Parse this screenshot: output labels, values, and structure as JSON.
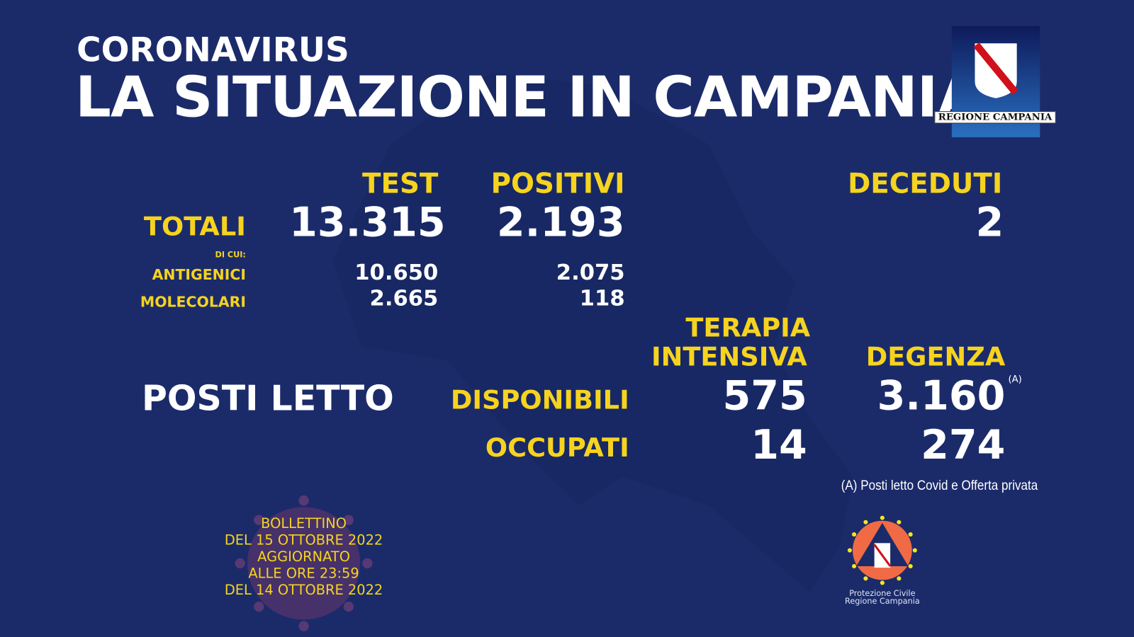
{
  "header": {
    "kicker": "CORONAVIRUS",
    "title": "LA SITUAZIONE IN CAMPANIA"
  },
  "logo_region": {
    "text": "REGIONE CAMPANIA"
  },
  "columns": {
    "test": "TEST",
    "positivi": "POSITIVI",
    "deceduti": "DECEDUTI"
  },
  "rows": {
    "totali": {
      "label": "TOTALI",
      "test": "13.315",
      "positivi": "2.193",
      "deceduti": "2"
    },
    "di_cui": "DI CUI:",
    "antigenici": {
      "label": "ANTIGENICI",
      "test": "10.650",
      "positivi": "2.075"
    },
    "molecolari": {
      "label": "MOLECOLARI",
      "test": "2.665",
      "positivi": "118"
    }
  },
  "beds": {
    "title": "POSTI LETTO",
    "col_ti_1": "TERAPIA",
    "col_ti_2": "INTENSIVA",
    "col_deg": "DEGENZA",
    "disponibili": {
      "label": "DISPONIBILI",
      "ti": "575",
      "deg": "3.160",
      "note_mark": "(A)"
    },
    "occupati": {
      "label": "OCCUPATI",
      "ti": "14",
      "deg": "274"
    },
    "footnote": "(A) Posti letto Covid e Offerta privata"
  },
  "bulletin": {
    "l1": "BOLLETTINO",
    "l2": "DEL 15 OTTOBRE 2022",
    "l3": "AGGIORNATO",
    "l4": "ALLE ORE 23:59",
    "l5": "DEL 14 OTTOBRE 2022"
  },
  "logo_pc": {
    "l1": "Protezione Civile",
    "l2": "Regione Campania"
  },
  "colors": {
    "background": "#1b2b6a",
    "accent": "#f6d31f"
  }
}
